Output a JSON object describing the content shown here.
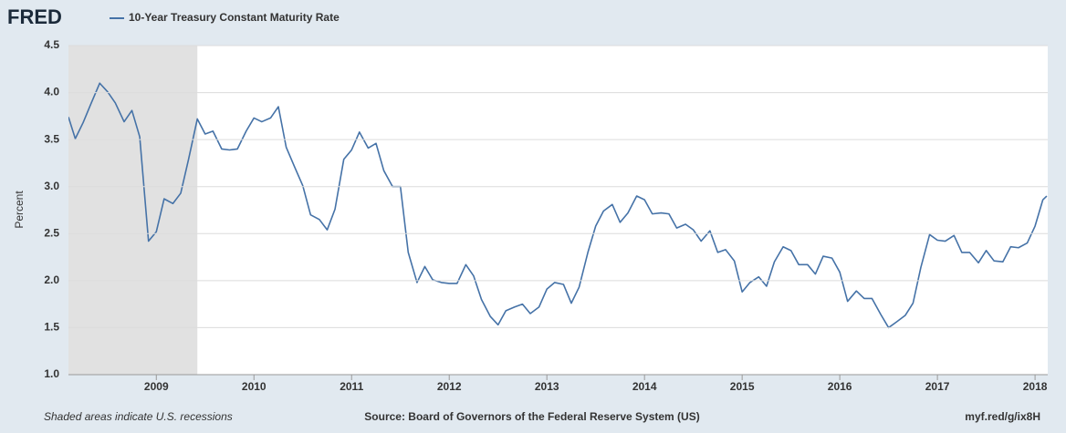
{
  "chart_data": {
    "type": "line",
    "logo": "FRED",
    "title": "10-Year Treasury Constant Maturity Rate",
    "ylabel": "Percent",
    "footnote": "Shaded areas indicate U.S. recessions",
    "source": "Source: Board of Governors of the Federal Reserve System (US)",
    "link": "myf.red/g/ix8H",
    "grid": true,
    "recessions": [
      {
        "start": 2007.92,
        "end": 2009.42,
        "color": "#e1e1e1"
      }
    ],
    "xlim": [
      2008.1,
      2018.13
    ],
    "xticks": [
      2009,
      2010,
      2011,
      2012,
      2013,
      2014,
      2015,
      2016,
      2017,
      2018
    ],
    "ylim": [
      1,
      4.5
    ],
    "yticks": [
      {
        "value": 1,
        "label": "1.0"
      },
      1.5,
      {
        "value": 2,
        "label": "2.0"
      },
      2.5,
      {
        "value": 3,
        "label": "3.0"
      },
      3.5,
      {
        "value": 4,
        "label": "4.0"
      },
      4.5
    ],
    "x": [
      2008.1,
      2008.17,
      2008.25,
      2008.33,
      2008.42,
      2008.5,
      2008.58,
      2008.67,
      2008.75,
      2008.83,
      2008.92,
      2009,
      2009.08,
      2009.17,
      2009.25,
      2009.33,
      2009.42,
      2009.5,
      2009.58,
      2009.67,
      2009.75,
      2009.83,
      2009.92,
      2010,
      2010.08,
      2010.17,
      2010.25,
      2010.33,
      2010.42,
      2010.5,
      2010.58,
      2010.67,
      2010.75,
      2010.83,
      2010.92,
      2011,
      2011.08,
      2011.17,
      2011.25,
      2011.33,
      2011.42,
      2011.5,
      2011.58,
      2011.67,
      2011.75,
      2011.83,
      2011.92,
      2012,
      2012.08,
      2012.17,
      2012.25,
      2012.33,
      2012.42,
      2012.5,
      2012.58,
      2012.67,
      2012.75,
      2012.83,
      2012.92,
      2013,
      2013.08,
      2013.17,
      2013.25,
      2013.33,
      2013.42,
      2013.5,
      2013.58,
      2013.67,
      2013.75,
      2013.83,
      2013.92,
      2014,
      2014.08,
      2014.17,
      2014.25,
      2014.33,
      2014.42,
      2014.5,
      2014.58,
      2014.67,
      2014.75,
      2014.83,
      2014.92,
      2015,
      2015.08,
      2015.17,
      2015.25,
      2015.33,
      2015.42,
      2015.5,
      2015.58,
      2015.67,
      2015.75,
      2015.83,
      2015.92,
      2016,
      2016.08,
      2016.17,
      2016.25,
      2016.33,
      2016.42,
      2016.5,
      2016.58,
      2016.67,
      2016.75,
      2016.83,
      2016.92,
      2017,
      2017.08,
      2017.17,
      2017.25,
      2017.33,
      2017.42,
      2017.5,
      2017.58,
      2017.67,
      2017.75,
      2017.83,
      2017.92,
      2018,
      2018.08,
      2018.12
    ],
    "series": [
      {
        "name": "10-Year Treasury Constant Maturity Rate",
        "color": "#4572a7",
        "values": [
          3.74,
          3.51,
          3.68,
          3.88,
          4.1,
          4.01,
          3.89,
          3.69,
          3.81,
          3.53,
          2.42,
          2.52,
          2.87,
          2.82,
          2.93,
          3.29,
          3.72,
          3.56,
          3.59,
          3.4,
          3.39,
          3.4,
          3.59,
          3.73,
          3.69,
          3.73,
          3.85,
          3.42,
          3.2,
          3.01,
          2.7,
          2.65,
          2.54,
          2.76,
          3.29,
          3.39,
          3.58,
          3.41,
          3.46,
          3.17,
          3.0,
          3.0,
          2.3,
          1.98,
          2.15,
          2.01,
          1.98,
          1.97,
          1.97,
          2.17,
          2.05,
          1.8,
          1.62,
          1.53,
          1.68,
          1.72,
          1.75,
          1.65,
          1.72,
          1.91,
          1.98,
          1.96,
          1.76,
          1.93,
          2.3,
          2.58,
          2.74,
          2.81,
          2.62,
          2.72,
          2.9,
          2.86,
          2.71,
          2.72,
          2.71,
          2.56,
          2.6,
          2.54,
          2.42,
          2.53,
          2.3,
          2.33,
          2.21,
          1.88,
          1.98,
          2.04,
          1.94,
          2.2,
          2.36,
          2.32,
          2.17,
          2.17,
          2.07,
          2.26,
          2.24,
          2.09,
          1.78,
          1.89,
          1.81,
          1.81,
          1.64,
          1.5,
          1.56,
          1.63,
          1.76,
          2.14,
          2.49,
          2.43,
          2.42,
          2.48,
          2.3,
          2.3,
          2.19,
          2.32,
          2.21,
          2.2,
          2.36,
          2.35,
          2.4,
          2.58,
          2.86,
          2.9
        ]
      }
    ]
  }
}
